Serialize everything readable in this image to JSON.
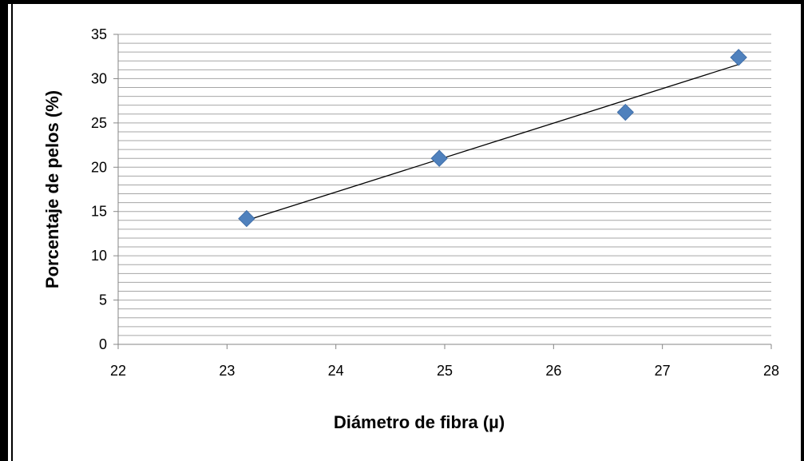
{
  "chart_data": {
    "type": "scatter",
    "title": "",
    "xlabel": "Diámetro de fibra  (µ)",
    "ylabel": "Porcentaje de pelos (%)",
    "xlim": [
      22,
      28
    ],
    "ylim": [
      0,
      35
    ],
    "x_ticks": [
      "22",
      "23",
      "24",
      "25",
      "26",
      "27",
      "28"
    ],
    "y_ticks": [
      "0",
      "5",
      "10",
      "15",
      "20",
      "25",
      "30",
      "35"
    ],
    "grid": true,
    "legend": "none",
    "series": [
      {
        "x": [
          23.18,
          24.95,
          26.66,
          27.7
        ],
        "y": [
          14.2,
          21.0,
          26.2,
          32.4
        ],
        "marker": "diamond",
        "color": "#4F81BD"
      }
    ],
    "trendline": {
      "type": "linear",
      "x": [
        23.18,
        27.7
      ],
      "y": [
        14.0,
        31.6
      ],
      "color": "#000000"
    }
  }
}
